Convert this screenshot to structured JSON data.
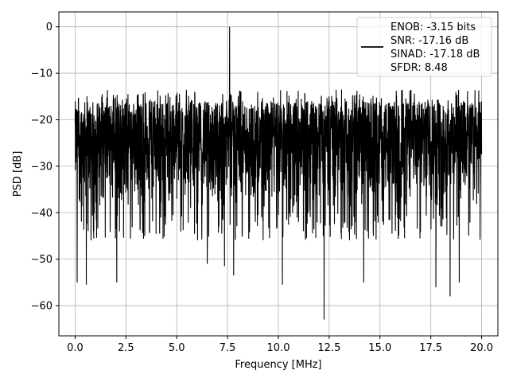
{
  "chart_data": {
    "type": "line",
    "title": "",
    "xlabel": "Frequency [MHz]",
    "ylabel": "PSD [dB]",
    "xlim": [
      -0.8,
      20.8
    ],
    "ylim": [
      -66.5,
      3.2
    ],
    "xticks": [
      0.0,
      2.5,
      5.0,
      7.5,
      10.0,
      12.5,
      15.0,
      17.5,
      20.0
    ],
    "xtick_labels": [
      "0.0",
      "2.5",
      "5.0",
      "7.5",
      "10.0",
      "12.5",
      "15.0",
      "17.5",
      "20.0"
    ],
    "yticks": [
      0,
      -10,
      -20,
      -30,
      -40,
      -50,
      -60
    ],
    "ytick_labels": [
      "0",
      "−10",
      "−20",
      "−30",
      "−40",
      "−50",
      "−60"
    ],
    "grid": true,
    "legend_position": "top-right",
    "legend_lines": [
      "ENOB: -3.15 bits",
      "SNR: -17.16 dB",
      "SINAD: -17.18 dB",
      "SFDR: 8.48"
    ],
    "series": [
      {
        "color": "#000000",
        "noise_floor_db": -28,
        "noise_band_db": [
          -40,
          -16
        ],
        "peaks": [
          {
            "x": 7.6,
            "y": 0
          }
        ],
        "dips": [
          {
            "x": 0.1,
            "y": -55
          },
          {
            "x": 0.55,
            "y": -55.5
          },
          {
            "x": 2.05,
            "y": -55
          },
          {
            "x": 6.5,
            "y": -51
          },
          {
            "x": 7.35,
            "y": -51.5
          },
          {
            "x": 7.8,
            "y": -53.5
          },
          {
            "x": 10.2,
            "y": -55.5
          },
          {
            "x": 12.25,
            "y": -63
          },
          {
            "x": 14.2,
            "y": -55
          },
          {
            "x": 17.75,
            "y": -56
          },
          {
            "x": 18.45,
            "y": -58
          },
          {
            "x": 18.9,
            "y": -55
          }
        ],
        "x_range": [
          0,
          20
        ]
      }
    ]
  }
}
